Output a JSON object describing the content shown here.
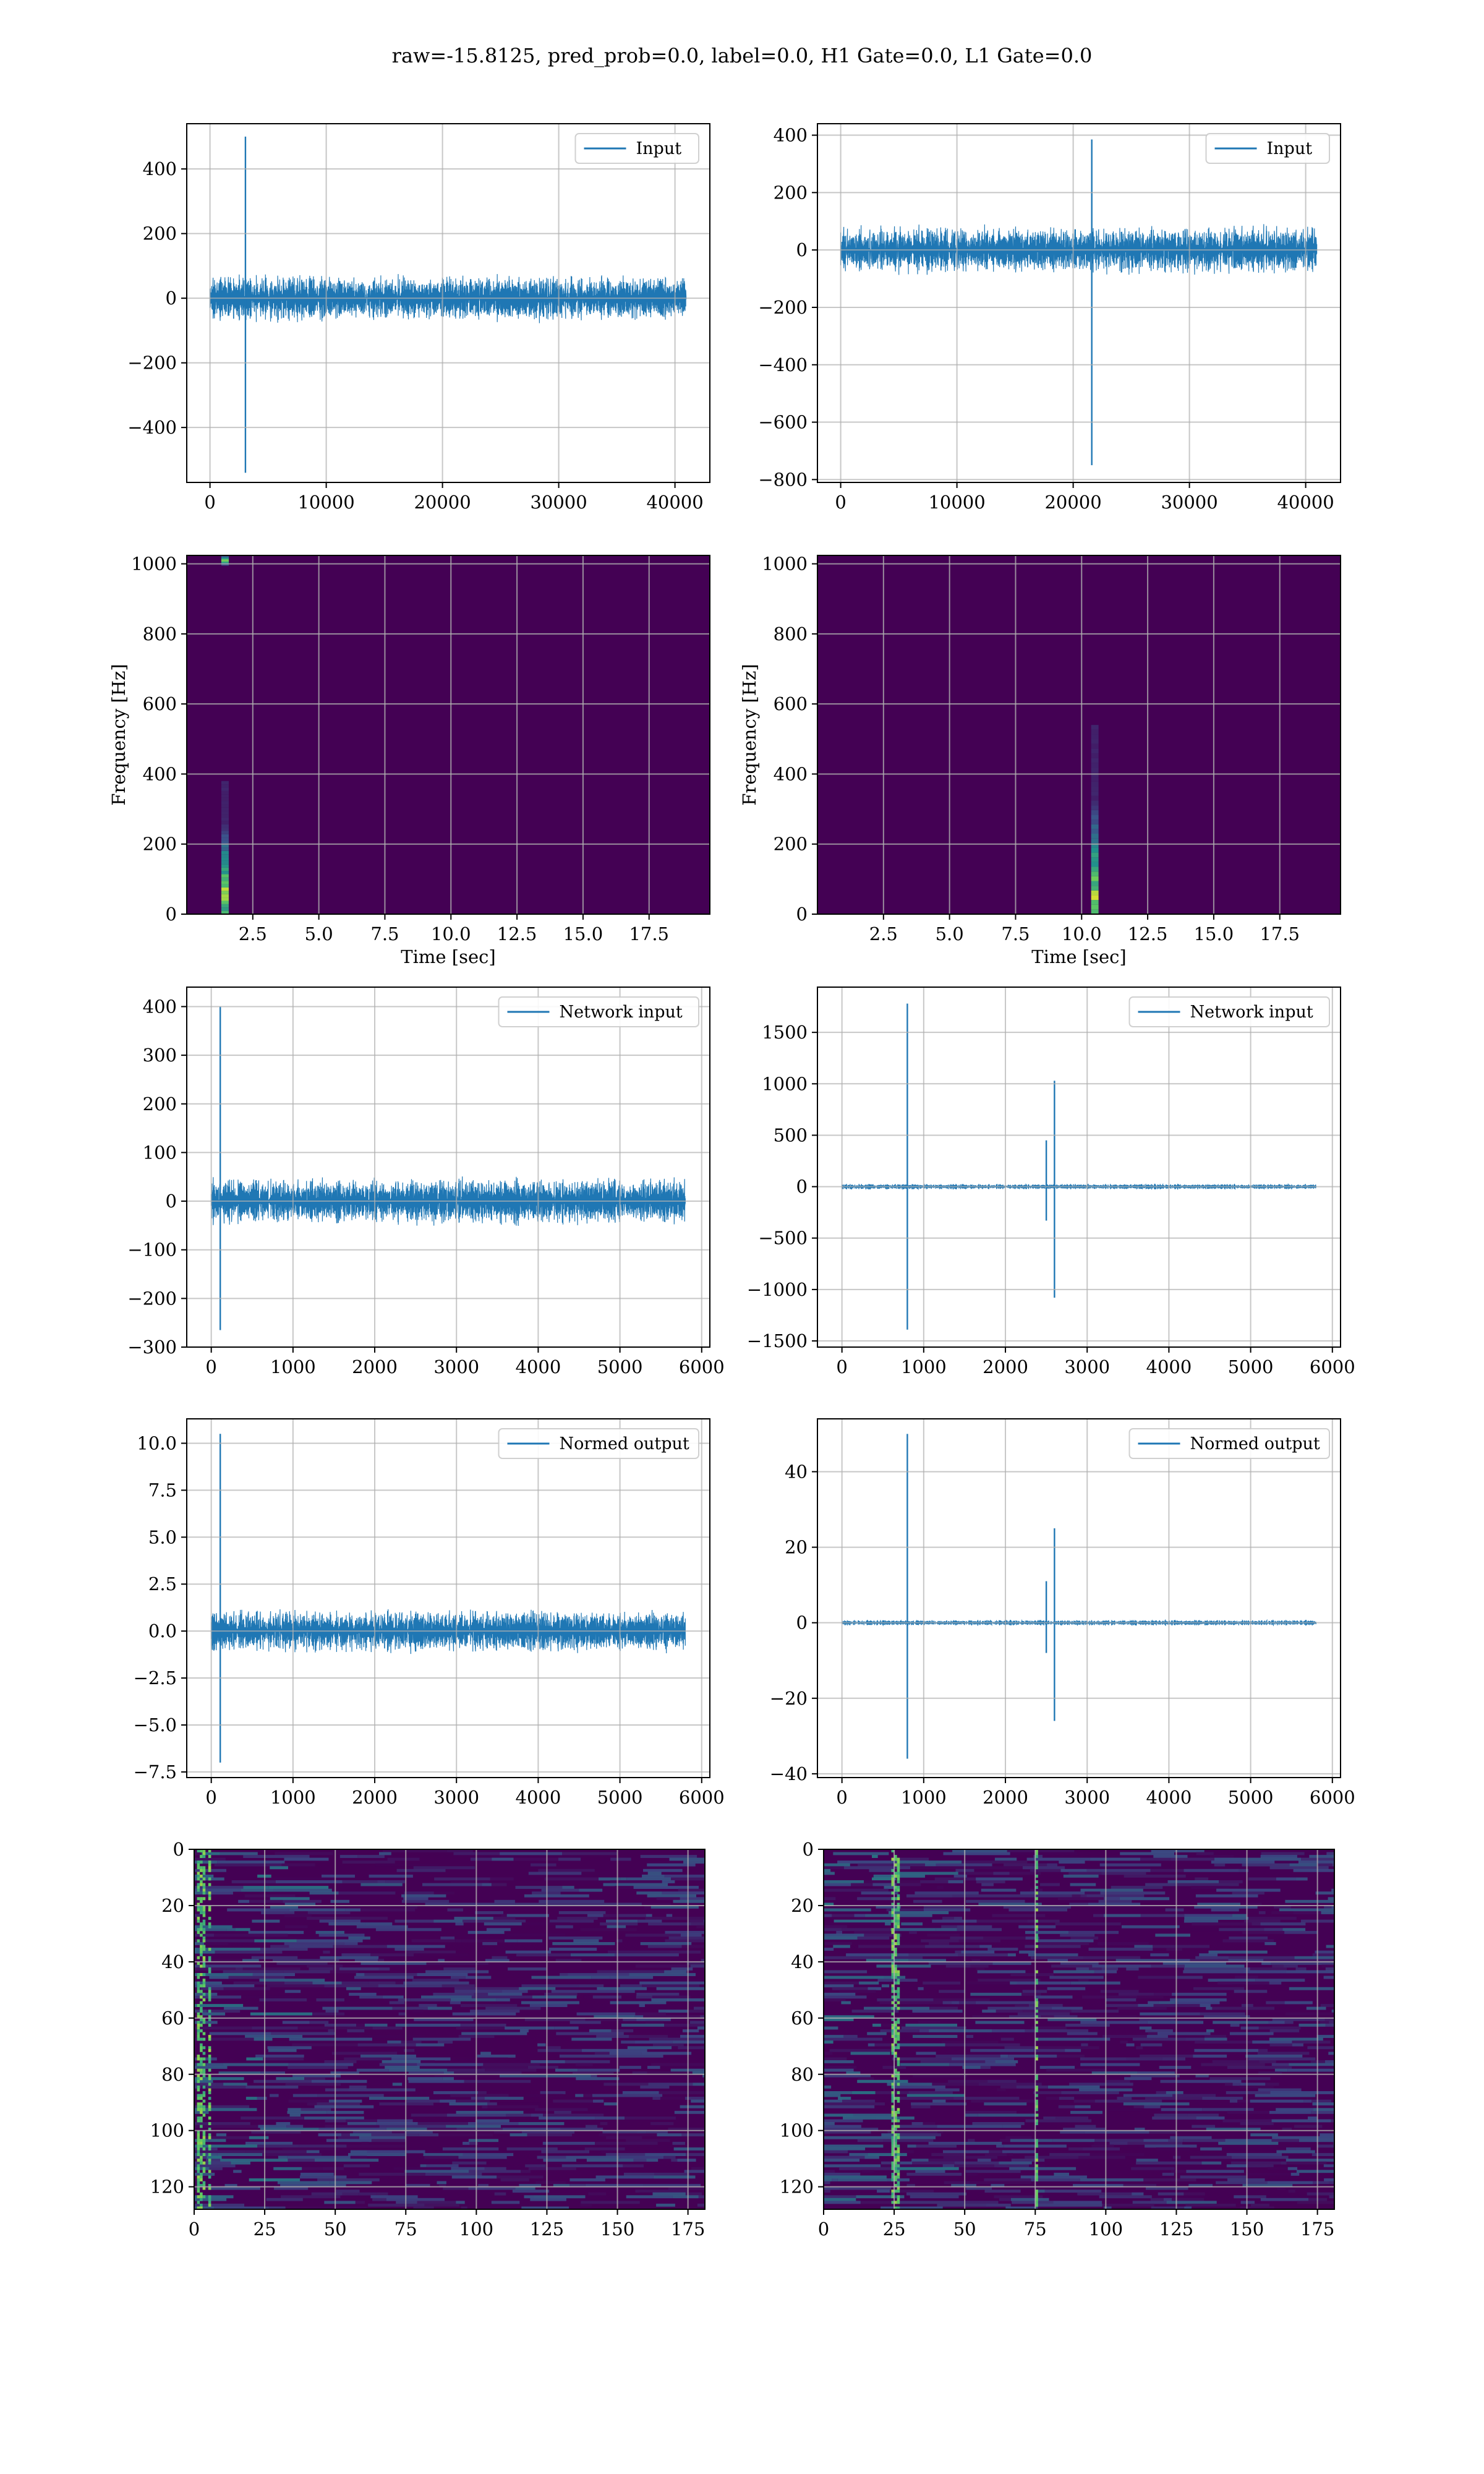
{
  "suptitle": "raw=-15.8125, pred_prob=0.0, label=0.0, H1 Gate=0.0, L1 Gate=0.0",
  "colors": {
    "line": "#1f77b4",
    "grid": "#b0b0b0",
    "viridis_bg": "#440154",
    "viridis_mid": "#31688e",
    "viridis_hi": "#35b779",
    "viridis_top": "#fde725"
  },
  "chart_data": [
    {
      "id": "input-h1",
      "type": "line",
      "legend": "Input",
      "legend_loc": "upper right",
      "grid": true,
      "xlim": [
        -2000,
        43000
      ],
      "ylim": [
        -570,
        540
      ],
      "xticks": [
        0,
        10000,
        20000,
        30000,
        40000
      ],
      "yticks": [
        -400,
        -200,
        0,
        200,
        400
      ],
      "xticklabels": [
        "0",
        "10000",
        "20000",
        "30000",
        "40000"
      ],
      "yticklabels": [
        "−400",
        "−200",
        "0",
        "200",
        "400"
      ],
      "signal": {
        "n": 40960,
        "noise_amp": 60,
        "noise_clip": 140,
        "spikes": [
          {
            "x": 3050,
            "max": 500,
            "min": -540
          }
        ]
      }
    },
    {
      "id": "input-l1",
      "type": "line",
      "legend": "Input",
      "legend_loc": "upper right",
      "grid": true,
      "xlim": [
        -2000,
        43000
      ],
      "ylim": [
        -810,
        440
      ],
      "xticks": [
        0,
        10000,
        20000,
        30000,
        40000
      ],
      "yticks": [
        -800,
        -600,
        -400,
        -200,
        0,
        200,
        400
      ],
      "xticklabels": [
        "0",
        "10000",
        "20000",
        "30000",
        "40000"
      ],
      "yticklabels": [
        "−800",
        "−600",
        "−400",
        "−200",
        "0",
        "200",
        "400"
      ],
      "signal": {
        "n": 40960,
        "noise_amp": 70,
        "noise_clip": 130,
        "spikes": [
          {
            "x": 21600,
            "max": 385,
            "min": -750
          }
        ]
      }
    },
    {
      "id": "spectrogram-h1",
      "type": "heatmap",
      "xlabel": "Time [sec]",
      "ylabel": "Frequency [Hz]",
      "grid": true,
      "xlim": [
        0,
        19.8
      ],
      "ylim": [
        0,
        1024
      ],
      "xticks": [
        2.5,
        5.0,
        7.5,
        10.0,
        12.5,
        15.0,
        17.5
      ],
      "yticks": [
        0,
        200,
        400,
        600,
        800,
        1000
      ],
      "xticklabels": [
        "2.5",
        "5.0",
        "7.5",
        "10.0",
        "12.5",
        "15.0",
        "17.5"
      ],
      "yticklabels": [
        "0",
        "200",
        "400",
        "600",
        "800",
        "1000"
      ],
      "features": [
        {
          "x": 1.45,
          "fmax": 380,
          "peak_f": 60
        },
        {
          "x": 1.45,
          "fmin": 995,
          "fmax": 1024,
          "peak_f": 1010
        }
      ]
    },
    {
      "id": "spectrogram-l1",
      "type": "heatmap",
      "xlabel": "Time [sec]",
      "ylabel": "Frequency [Hz]",
      "grid": true,
      "xlim": [
        0,
        19.8
      ],
      "ylim": [
        0,
        1024
      ],
      "xticks": [
        2.5,
        5.0,
        7.5,
        10.0,
        12.5,
        15.0,
        17.5
      ],
      "yticks": [
        0,
        200,
        400,
        600,
        800,
        1000
      ],
      "xticklabels": [
        "2.5",
        "5.0",
        "7.5",
        "10.0",
        "12.5",
        "15.0",
        "17.5"
      ],
      "yticklabels": [
        "0",
        "200",
        "400",
        "600",
        "800",
        "1000"
      ],
      "features": [
        {
          "x": 10.5,
          "fmax": 540,
          "peak_f": 40
        }
      ]
    },
    {
      "id": "network-input-h1",
      "type": "line",
      "legend": "Network input",
      "legend_loc": "upper right",
      "grid": true,
      "xlim": [
        -300,
        6100
      ],
      "ylim": [
        -300,
        440
      ],
      "xticks": [
        0,
        1000,
        2000,
        3000,
        4000,
        5000,
        6000
      ],
      "yticks": [
        -300,
        -200,
        -100,
        0,
        100,
        200,
        300,
        400
      ],
      "xticklabels": [
        "0",
        "1000",
        "2000",
        "3000",
        "4000",
        "5000",
        "6000"
      ],
      "yticklabels": [
        "−300",
        "−200",
        "−100",
        "0",
        "100",
        "200",
        "300",
        "400"
      ],
      "signal": {
        "n": 5800,
        "noise_amp": 40,
        "noise_clip": 110,
        "spikes": [
          {
            "x": 110,
            "max": 400,
            "min": -265
          }
        ]
      }
    },
    {
      "id": "network-input-l1",
      "type": "line",
      "legend": "Network input",
      "legend_loc": "upper right",
      "grid": true,
      "xlim": [
        -300,
        6100
      ],
      "ylim": [
        -1560,
        1940
      ],
      "xticks": [
        0,
        1000,
        2000,
        3000,
        4000,
        5000,
        6000
      ],
      "yticks": [
        -1500,
        -1000,
        -500,
        0,
        500,
        1000,
        1500
      ],
      "xticklabels": [
        "0",
        "1000",
        "2000",
        "3000",
        "4000",
        "5000",
        "6000"
      ],
      "yticklabels": [
        "−1500",
        "−1000",
        "−500",
        "0",
        "500",
        "1000",
        "1500"
      ],
      "signal": {
        "n": 5800,
        "noise_amp": 22,
        "noise_clip": 70,
        "spikes": [
          {
            "x": 800,
            "max": 1780,
            "min": -1390
          },
          {
            "x": 2500,
            "max": 450,
            "min": -330
          },
          {
            "x": 2600,
            "max": 1030,
            "min": -1080
          }
        ]
      }
    },
    {
      "id": "normed-output-h1",
      "type": "line",
      "legend": "Normed output",
      "legend_loc": "upper right",
      "grid": true,
      "xlim": [
        -300,
        6100
      ],
      "ylim": [
        -7.8,
        11.3
      ],
      "xticks": [
        0,
        1000,
        2000,
        3000,
        4000,
        5000,
        6000
      ],
      "yticks": [
        -7.5,
        -5.0,
        -2.5,
        0.0,
        2.5,
        5.0,
        7.5,
        10.0
      ],
      "xticklabels": [
        "0",
        "1000",
        "2000",
        "3000",
        "4000",
        "5000",
        "6000"
      ],
      "yticklabels": [
        "−7.5",
        "−5.0",
        "−2.5",
        "0.0",
        "2.5",
        "5.0",
        "7.5",
        "10.0"
      ],
      "signal": {
        "n": 5800,
        "noise_amp": 0.95,
        "noise_clip": 2.5,
        "spikes": [
          {
            "x": 110,
            "max": 10.5,
            "min": -7.0
          }
        ]
      }
    },
    {
      "id": "normed-output-l1",
      "type": "line",
      "legend": "Normed output",
      "legend_loc": "upper right",
      "grid": true,
      "xlim": [
        -300,
        6100
      ],
      "ylim": [
        -41,
        54
      ],
      "xticks": [
        0,
        1000,
        2000,
        3000,
        4000,
        5000,
        6000
      ],
      "yticks": [
        -40,
        -20,
        0,
        20,
        40
      ],
      "xticklabels": [
        "0",
        "1000",
        "2000",
        "3000",
        "4000",
        "5000",
        "6000"
      ],
      "yticklabels": [
        "−40",
        "−20",
        "0",
        "20",
        "40"
      ],
      "signal": {
        "n": 5800,
        "noise_amp": 0.6,
        "noise_clip": 2,
        "spikes": [
          {
            "x": 800,
            "max": 50,
            "min": -36
          },
          {
            "x": 2500,
            "max": 11,
            "min": -8
          },
          {
            "x": 2600,
            "max": 25,
            "min": -26
          }
        ]
      }
    },
    {
      "id": "feature-map-h1",
      "type": "heatmap",
      "grid": true,
      "xlim": [
        0,
        181
      ],
      "ylim": [
        128,
        0
      ],
      "xticks": [
        0,
        25,
        50,
        75,
        100,
        125,
        150,
        175
      ],
      "yticks": [
        0,
        20,
        40,
        60,
        80,
        100,
        120
      ],
      "xticklabels": [
        "0",
        "25",
        "50",
        "75",
        "100",
        "125",
        "150",
        "175"
      ],
      "yticklabels": [
        "0",
        "20",
        "40",
        "60",
        "80",
        "100",
        "120"
      ],
      "hot_columns": [
        1,
        2,
        3,
        5
      ]
    },
    {
      "id": "feature-map-l1",
      "type": "heatmap",
      "grid": true,
      "xlim": [
        0,
        181
      ],
      "ylim": [
        128,
        0
      ],
      "xticks": [
        0,
        25,
        50,
        75,
        100,
        125,
        150,
        175
      ],
      "yticks": [
        0,
        20,
        40,
        60,
        80,
        100,
        120
      ],
      "xticklabels": [
        "0",
        "25",
        "50",
        "75",
        "100",
        "125",
        "150",
        "175"
      ],
      "yticklabels": [
        "0",
        "20",
        "40",
        "60",
        "80",
        "100",
        "120"
      ],
      "hot_columns": [
        24,
        25,
        26,
        75
      ]
    }
  ]
}
